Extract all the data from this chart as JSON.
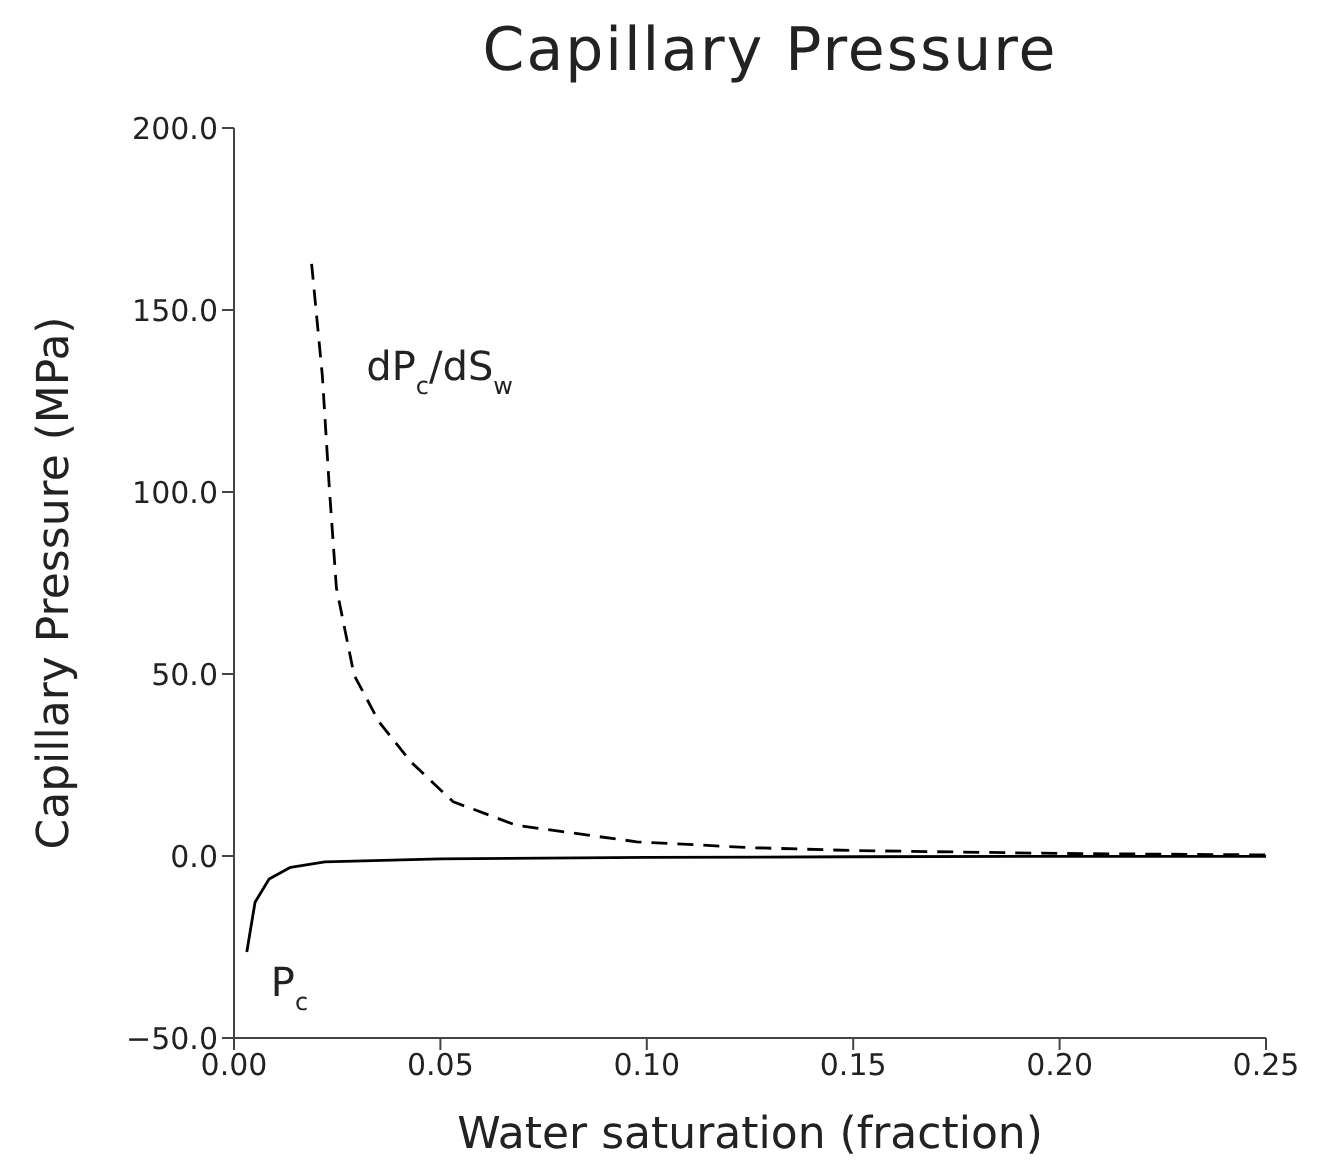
{
  "chart_data": {
    "type": "line",
    "title": "Capillary Pressure",
    "xlabel": "Water saturation (fraction)",
    "ylabel": "Capillary Pressure (MPa)",
    "xlim": [
      0,
      0.25
    ],
    "ylim": [
      -50,
      200
    ],
    "xticks": [
      {
        "value": 0,
        "label": "0.00"
      },
      {
        "value": 0.05,
        "label": "0.05"
      },
      {
        "value": 0.1,
        "label": "0.10"
      },
      {
        "value": 0.15,
        "label": "0.15"
      },
      {
        "value": 0.2,
        "label": "0.20"
      },
      {
        "value": 0.25,
        "label": "0.25"
      }
    ],
    "yticks": [
      {
        "value": -50,
        "label": "−50.0"
      },
      {
        "value": 0,
        "label": "0.0"
      },
      {
        "value": 50,
        "label": "50.0"
      },
      {
        "value": 100,
        "label": "100.0"
      },
      {
        "value": 150,
        "label": "150.0"
      },
      {
        "value": 200,
        "label": "200.0"
      }
    ],
    "grid": false,
    "legend": false,
    "marker": "none",
    "series": [
      {
        "name": "dP$_{c}$/dS$_{w}$",
        "color": "#000000",
        "line_style": "dashed",
        "x": [
          0.0188,
          0.0214,
          0.0231,
          0.0248,
          0.0291,
          0.0351,
          0.0428,
          0.0531,
          0.0685,
          0.0976,
          0.125,
          0.15,
          0.2,
          0.25
        ],
        "values": [
          162.7,
          132,
          101,
          73.7,
          49.7,
          36.9,
          25.9,
          14.9,
          8.4,
          3.9,
          2.3,
          1.5,
          0.7,
          0.3
        ]
      },
      {
        "name": "P$_{c}$",
        "color": "#000000",
        "line_style": "solid",
        "x": [
          0.0031,
          0.0051,
          0.0085,
          0.0137,
          0.022,
          0.05,
          0.1,
          0.15,
          0.2,
          0.25
        ],
        "values": [
          -26.4,
          -12.7,
          -6.3,
          -3.1,
          -1.6,
          -0.8,
          -0.4,
          -0.2,
          -0.1,
          -0.1
        ]
      }
    ]
  }
}
